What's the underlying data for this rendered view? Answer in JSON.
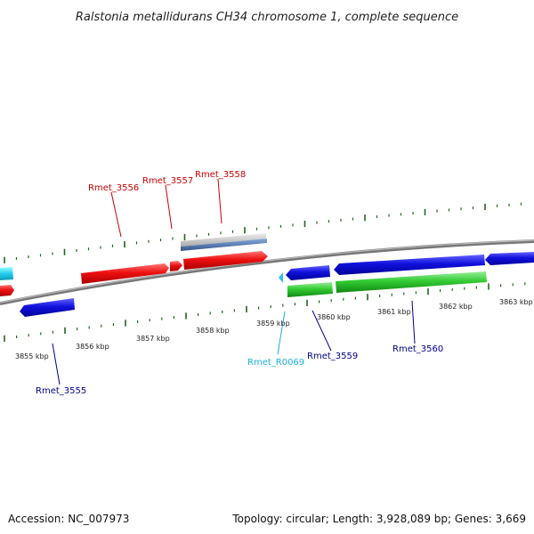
{
  "title": "Ralstonia metallidurans CH34 chromosome 1, complete sequence",
  "footer": {
    "accession": "Accession: NC_007973",
    "summary": "Topology: circular; Length: 3,928,089 bp; Genes: 3,669"
  },
  "kbp_labels": [
    "3855 kbp",
    "3856 kbp",
    "3857 kbp",
    "3858 kbp",
    "3859 kbp",
    "3860 kbp",
    "3861 kbp",
    "3862 kbp",
    "3863 kbp"
  ],
  "gene_labels": [
    {
      "name": "Rmet_3555",
      "color": "#00008b"
    },
    {
      "name": "Rmet_3556",
      "color": "#cc0000"
    },
    {
      "name": "Rmet_3557",
      "color": "#cc0000"
    },
    {
      "name": "Rmet_3558",
      "color": "#cc0000"
    },
    {
      "name": "Rmet_R0069",
      "color": "#1ab0e0"
    },
    {
      "name": "Rmet_3559",
      "color": "#00008b"
    },
    {
      "name": "Rmet_3560",
      "color": "#00008b"
    }
  ],
  "colors": {
    "forward_cds": "#ee1111",
    "reverse_cds": "#1111dd",
    "rna": "#22ccee",
    "orf_green": "#33cc33",
    "gc_skew_gray": "#bbbbbb",
    "gc_skew_blue": "#4477bb",
    "backbone": "#888888",
    "ticks": "#226622"
  }
}
